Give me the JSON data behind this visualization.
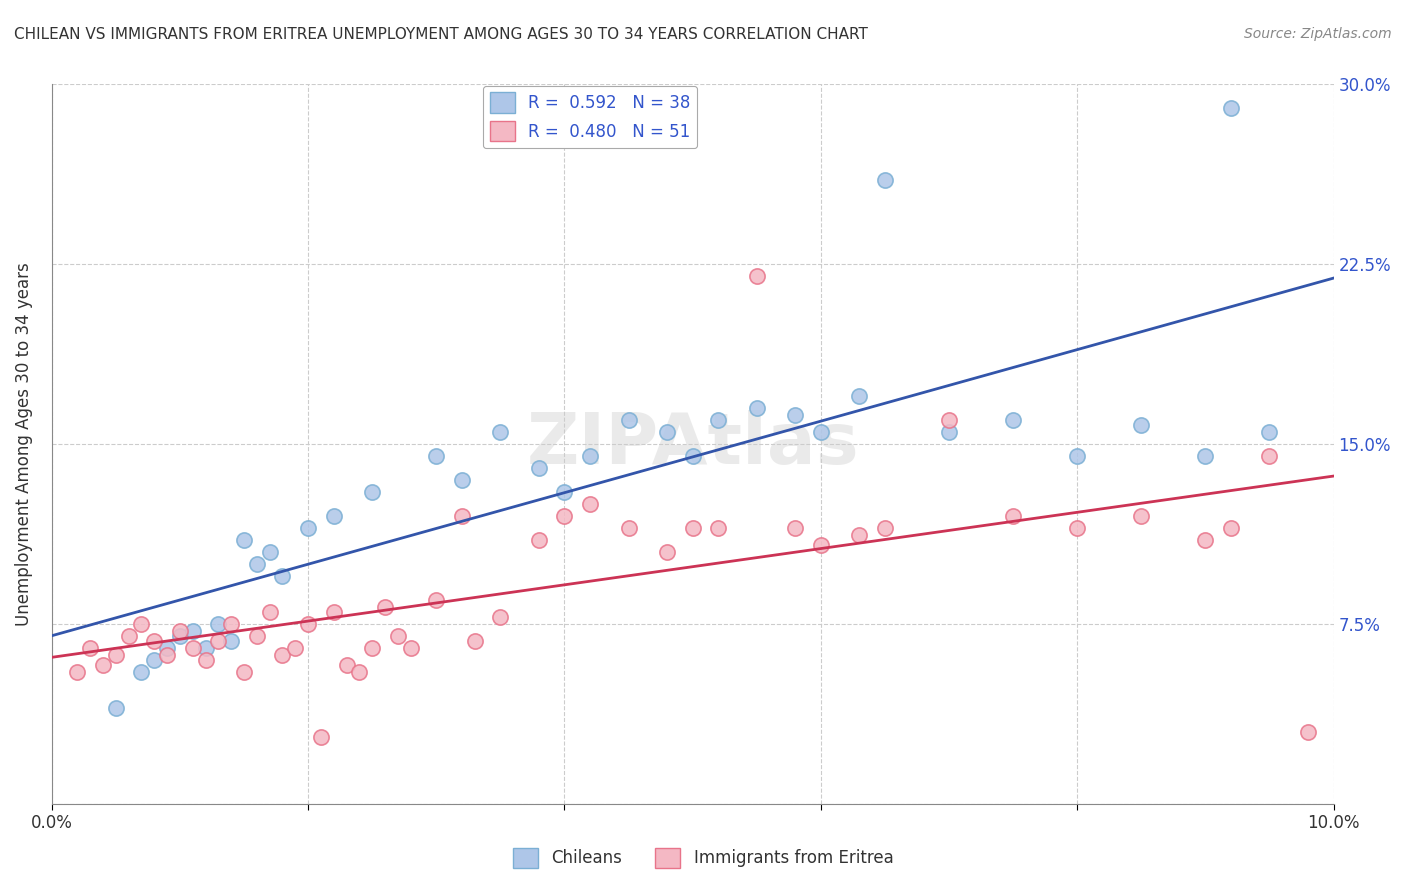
{
  "title": "CHILEAN VS IMMIGRANTS FROM ERITREA UNEMPLOYMENT AMONG AGES 30 TO 34 YEARS CORRELATION CHART",
  "source": "Source: ZipAtlas.com",
  "ylabel": "Unemployment Among Ages 30 to 34 years",
  "xlim": [
    0.0,
    0.1
  ],
  "ylim": [
    0.0,
    0.3
  ],
  "yticks": [
    0.0,
    0.075,
    0.15,
    0.225,
    0.3
  ],
  "ytick_labels": [
    "",
    "7.5%",
    "15.0%",
    "22.5%",
    "30.0%"
  ],
  "xticks": [
    0.0,
    0.02,
    0.04,
    0.06,
    0.08,
    0.1
  ],
  "xtick_labels": [
    "0.0%",
    "",
    "",
    "",
    "",
    "10.0%"
  ],
  "legend1_label": "R =  0.592   N = 38",
  "legend2_label": "R =  0.480   N = 51",
  "blue_color": "#7bafd4",
  "blue_fill": "#aec6e8",
  "pink_color": "#e8748a",
  "pink_fill": "#f4b8c4",
  "blue_line_color": "#3355aa",
  "pink_line_color": "#cc3355",
  "blue_scatter_x": [
    0.005,
    0.007,
    0.008,
    0.009,
    0.01,
    0.011,
    0.012,
    0.013,
    0.014,
    0.015,
    0.016,
    0.017,
    0.018,
    0.02,
    0.022,
    0.025,
    0.03,
    0.032,
    0.035,
    0.038,
    0.04,
    0.042,
    0.045,
    0.048,
    0.05,
    0.052,
    0.055,
    0.058,
    0.06,
    0.063,
    0.065,
    0.07,
    0.075,
    0.08,
    0.085,
    0.09,
    0.092,
    0.095
  ],
  "blue_scatter_y": [
    0.04,
    0.055,
    0.06,
    0.065,
    0.07,
    0.072,
    0.065,
    0.075,
    0.068,
    0.11,
    0.1,
    0.105,
    0.095,
    0.115,
    0.12,
    0.13,
    0.145,
    0.135,
    0.155,
    0.14,
    0.13,
    0.145,
    0.16,
    0.155,
    0.145,
    0.16,
    0.165,
    0.162,
    0.155,
    0.17,
    0.26,
    0.155,
    0.16,
    0.145,
    0.158,
    0.145,
    0.29,
    0.155
  ],
  "pink_scatter_x": [
    0.002,
    0.003,
    0.004,
    0.005,
    0.006,
    0.007,
    0.008,
    0.009,
    0.01,
    0.011,
    0.012,
    0.013,
    0.014,
    0.015,
    0.016,
    0.017,
    0.018,
    0.019,
    0.02,
    0.021,
    0.022,
    0.023,
    0.024,
    0.025,
    0.026,
    0.027,
    0.028,
    0.03,
    0.032,
    0.033,
    0.035,
    0.038,
    0.04,
    0.042,
    0.045,
    0.048,
    0.05,
    0.052,
    0.055,
    0.058,
    0.06,
    0.063,
    0.065,
    0.07,
    0.075,
    0.08,
    0.085,
    0.09,
    0.092,
    0.095,
    0.098
  ],
  "pink_scatter_y": [
    0.055,
    0.065,
    0.058,
    0.062,
    0.07,
    0.075,
    0.068,
    0.062,
    0.072,
    0.065,
    0.06,
    0.068,
    0.075,
    0.055,
    0.07,
    0.08,
    0.062,
    0.065,
    0.075,
    0.028,
    0.08,
    0.058,
    0.055,
    0.065,
    0.082,
    0.07,
    0.065,
    0.085,
    0.12,
    0.068,
    0.078,
    0.11,
    0.12,
    0.125,
    0.115,
    0.105,
    0.115,
    0.115,
    0.22,
    0.115,
    0.108,
    0.112,
    0.115,
    0.16,
    0.12,
    0.115,
    0.12,
    0.11,
    0.115,
    0.145,
    0.03
  ]
}
